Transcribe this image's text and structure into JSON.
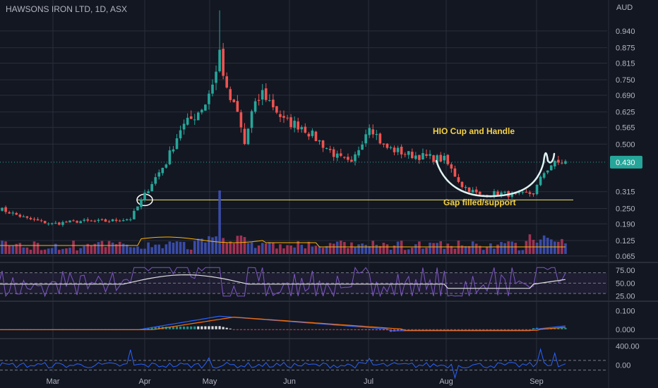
{
  "chart_data": {
    "type": "candlestick",
    "title": "HAWSONS IRON LTD, 1D, ASX",
    "currency": "AUD",
    "colors": {
      "up": "#26a69a",
      "down": "#ef5350",
      "background": "#131722",
      "grid": "#2a2e39",
      "support": "#f5e663",
      "annotation": "#f5d142",
      "cup": "#e0f2f1",
      "rsi": "#7e57c2",
      "rsi_ma": "#e0e0e0",
      "macd": "#2962ff",
      "signal": "#ff6d00",
      "cci": "#2962ff",
      "volume_ma": "#ffb300"
    },
    "x_tick_labels": [
      "Mar",
      "Apr",
      "May",
      "Jun",
      "Jul",
      "Aug",
      "Sep"
    ],
    "price_axis": {
      "ticks": [
        "0.940",
        "0.875",
        "0.815",
        "0.750",
        "0.690",
        "0.625",
        "0.565",
        "0.500",
        "0.250",
        "0.190",
        "0.125",
        "0.065"
      ],
      "extra_ticks": [
        "0.315"
      ],
      "last_price": "0.430",
      "ylim": [
        0.04,
        1.0
      ]
    },
    "annotations": {
      "pattern": "HIO Cup and Handle",
      "support": "Gap filled/support",
      "support_level": 0.283
    },
    "anchors": [
      {
        "d": 0,
        "p": 0.25
      },
      {
        "d": 8,
        "p": 0.21
      },
      {
        "d": 15,
        "p": 0.19
      },
      {
        "d": 22,
        "p": 0.2
      },
      {
        "d": 30,
        "p": 0.2
      },
      {
        "d": 37,
        "p": 0.21
      },
      {
        "d": 40,
        "p": 0.28
      },
      {
        "d": 43,
        "p": 0.35
      },
      {
        "d": 47,
        "p": 0.43
      },
      {
        "d": 51,
        "p": 0.56
      },
      {
        "d": 55,
        "p": 0.61
      },
      {
        "d": 58,
        "p": 0.66
      },
      {
        "d": 61,
        "p": 0.78
      },
      {
        "d": 62,
        "p": 0.86
      },
      {
        "d": 64,
        "p": 0.7
      },
      {
        "d": 67,
        "p": 0.62
      },
      {
        "d": 69,
        "p": 0.5
      },
      {
        "d": 71,
        "p": 0.62
      },
      {
        "d": 74,
        "p": 0.7
      },
      {
        "d": 77,
        "p": 0.65
      },
      {
        "d": 80,
        "p": 0.59
      },
      {
        "d": 85,
        "p": 0.57
      },
      {
        "d": 90,
        "p": 0.51
      },
      {
        "d": 95,
        "p": 0.45
      },
      {
        "d": 99,
        "p": 0.42
      },
      {
        "d": 104,
        "p": 0.58
      },
      {
        "d": 108,
        "p": 0.49
      },
      {
        "d": 115,
        "p": 0.46
      },
      {
        "d": 120,
        "p": 0.45
      },
      {
        "d": 125,
        "p": 0.44
      },
      {
        "d": 130,
        "p": 0.34
      },
      {
        "d": 135,
        "p": 0.3
      },
      {
        "d": 140,
        "p": 0.31
      },
      {
        "d": 145,
        "p": 0.3
      },
      {
        "d": 150,
        "p": 0.31
      },
      {
        "d": 153,
        "p": 0.39
      },
      {
        "d": 155,
        "p": 0.42
      },
      {
        "d": 158,
        "p": 0.43
      }
    ],
    "rsi": {
      "ticks": [
        "75.00",
        "50.00",
        "25.00"
      ],
      "ylim": [
        15,
        90
      ],
      "bands": [
        70,
        50,
        30
      ]
    },
    "macd": {
      "ticks": [
        "0.100",
        "0.000"
      ],
      "ylim": [
        -0.05,
        0.15
      ]
    },
    "cci": {
      "ticks": [
        "400.00",
        "0.00"
      ],
      "ylim": [
        -150,
        550
      ],
      "bands": [
        100,
        -100
      ]
    }
  }
}
